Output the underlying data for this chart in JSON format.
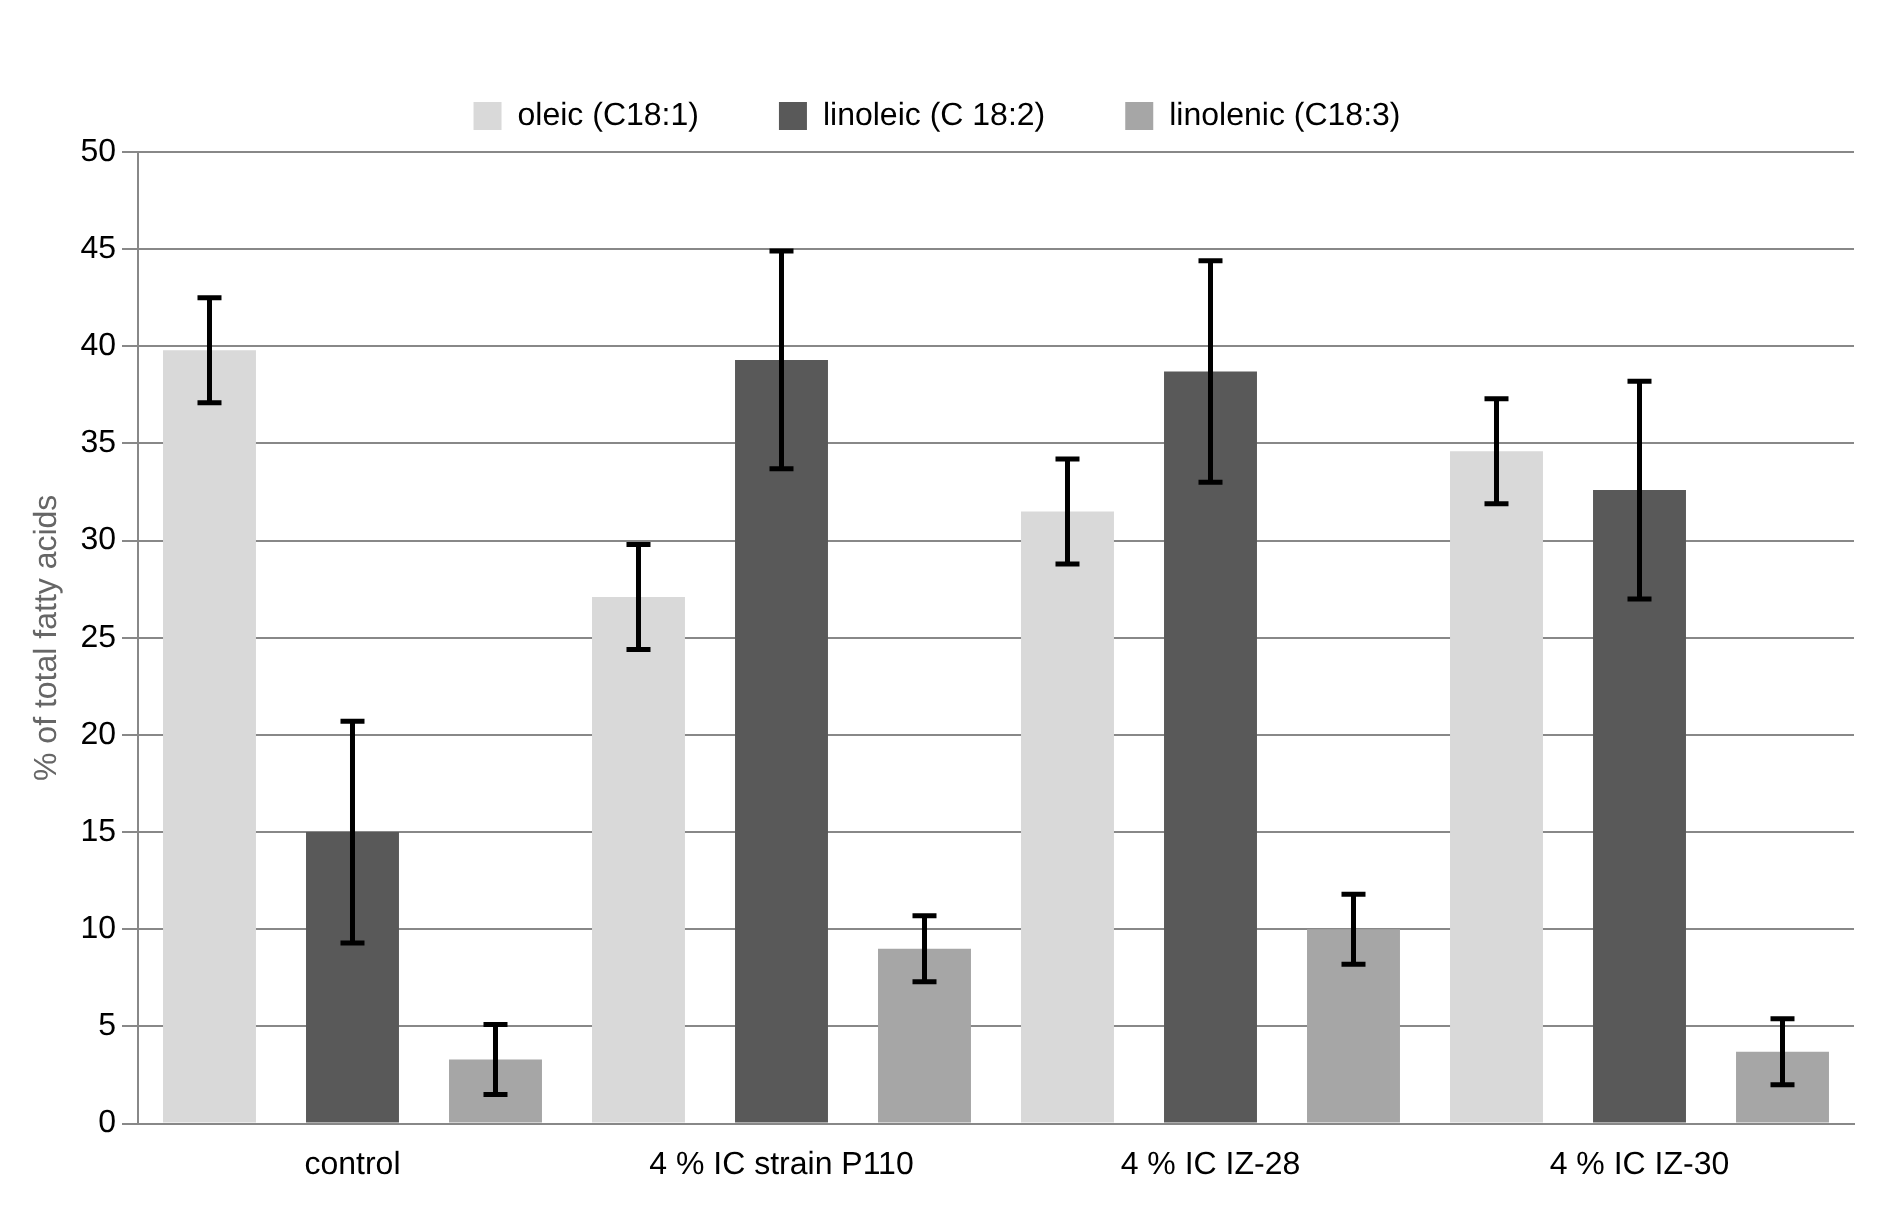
{
  "chart_data": {
    "type": "bar",
    "ylabel": "% of total fatty acids",
    "categories": [
      "control",
      "4 % IC strain P110",
      "4 % IC IZ-28",
      "4 % IC IZ-30"
    ],
    "series": [
      {
        "name": "oleic (C18:1)",
        "color": "#d9d9d9",
        "values": [
          39.8,
          27.1,
          31.5,
          34.6
        ],
        "errors": [
          2.7,
          2.7,
          2.7,
          2.7
        ]
      },
      {
        "name": "linoleic (C 18:2)",
        "color": "#595959",
        "values": [
          15.0,
          39.3,
          38.7,
          32.6
        ],
        "errors": [
          5.7,
          5.6,
          5.7,
          5.6
        ]
      },
      {
        "name": "linolenic (C18:3)",
        "color": "#a6a6a6",
        "values": [
          3.3,
          9.0,
          10.0,
          3.7
        ],
        "errors": [
          1.8,
          1.7,
          1.8,
          1.7
        ]
      }
    ],
    "ylim": [
      0,
      50
    ],
    "yticks": [
      0,
      5,
      10,
      15,
      20,
      25,
      30,
      35,
      40,
      45,
      50
    ],
    "grid": "y",
    "legend": "top"
  }
}
